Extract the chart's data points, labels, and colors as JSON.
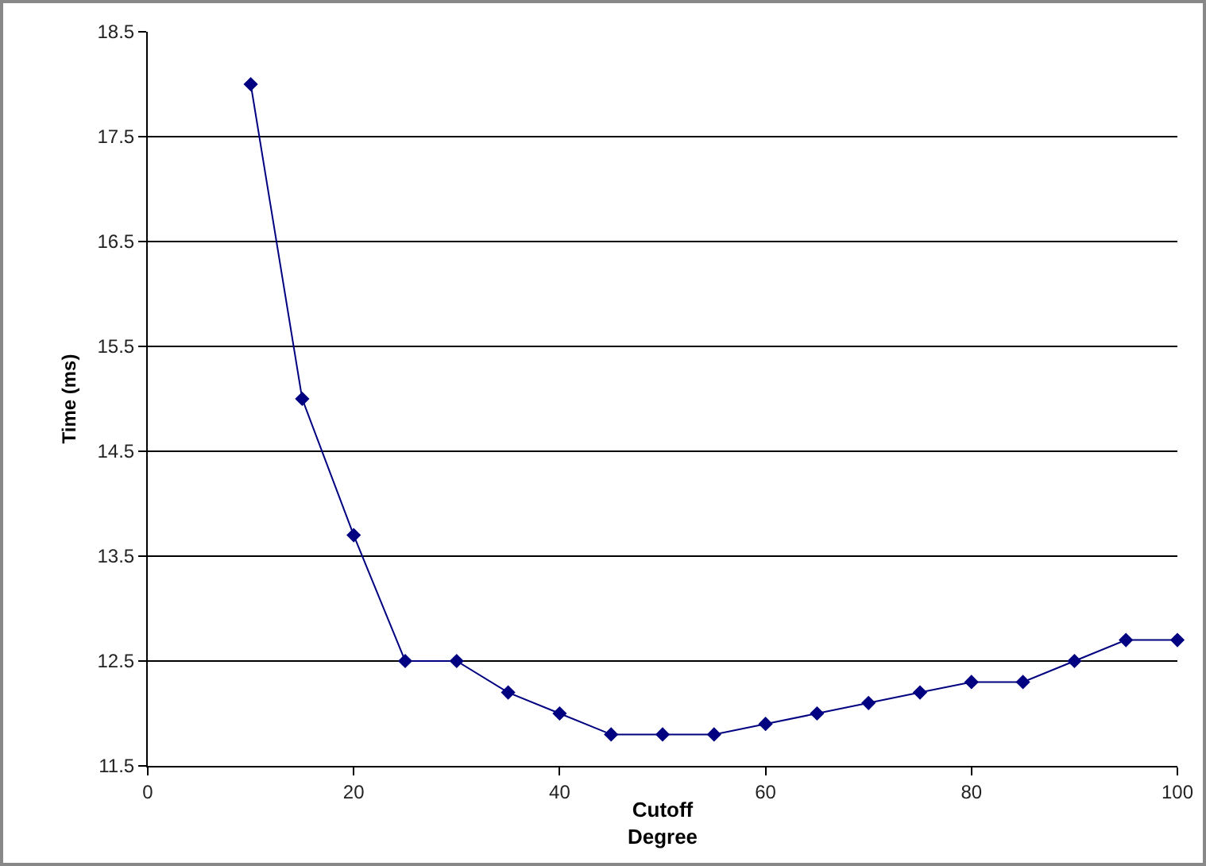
{
  "chart_data": {
    "type": "line",
    "xlabel": "Cutoff\nDegree",
    "ylabel": "Time (ms)",
    "x": [
      10,
      15,
      20,
      25,
      30,
      35,
      40,
      45,
      50,
      55,
      60,
      65,
      70,
      75,
      80,
      85,
      90,
      95,
      100
    ],
    "series": [
      {
        "color": "#000080",
        "values": [
          18.0,
          15.0,
          13.7,
          12.5,
          12.5,
          12.2,
          12.0,
          11.8,
          11.8,
          11.8,
          11.9,
          12.0,
          12.1,
          12.2,
          12.3,
          12.3,
          12.5,
          12.7,
          12.7
        ]
      }
    ],
    "xlim": [
      0,
      100
    ],
    "xticks": [
      0,
      20,
      40,
      60,
      80,
      100
    ],
    "ylim": [
      11.5,
      18.5
    ],
    "yticks": [
      11.5,
      12.5,
      13.5,
      14.5,
      15.5,
      16.5,
      17.5,
      18.5
    ],
    "grid": "y",
    "marker": "diamond",
    "line_style": "solid"
  }
}
